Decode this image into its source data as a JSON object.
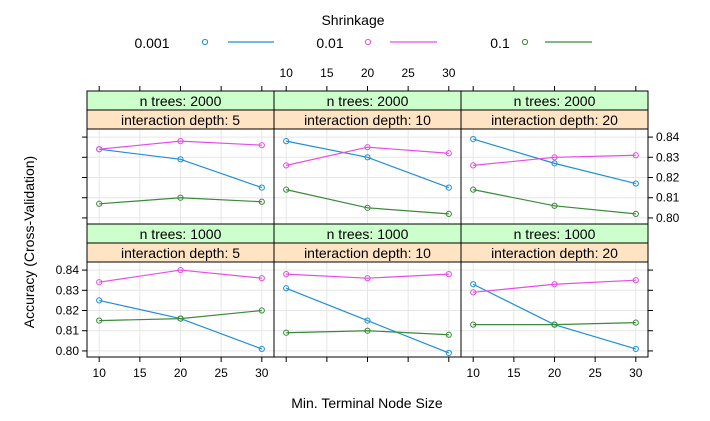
{
  "legend": {
    "title": "Shrinkage",
    "position": "top",
    "items": [
      {
        "label": "0.001",
        "color": "#1f8fd6"
      },
      {
        "label": "0.01",
        "color": "#e64de6"
      },
      {
        "label": "0.1",
        "color": "#3a8a3a"
      }
    ]
  },
  "colors": {
    "strip_green": "#ccffcc",
    "strip_orange": "#ffe4c4",
    "panel_border": "#000000",
    "grid": "#e6e6e6"
  },
  "chart_data": {
    "type": "line",
    "xlabel": "Min. Terminal Node Size",
    "ylabel": "Accuracy (Cross-Validation)",
    "xlim": [
      8.5,
      31.5
    ],
    "ylim": [
      0.797,
      0.844
    ],
    "x_ticks": [
      "10",
      "15",
      "20",
      "25",
      "30"
    ],
    "y_ticks": [
      "0.80",
      "0.81",
      "0.82",
      "0.83",
      "0.84"
    ],
    "grid": true,
    "x": [
      10,
      20,
      30
    ],
    "panels": [
      {
        "strip_top": "n trees: 2000",
        "strip_bottom": "interaction depth:  5",
        "series": [
          {
            "name": "0.001",
            "values": [
              0.834,
              0.829,
              0.815
            ]
          },
          {
            "name": "0.01",
            "values": [
              0.834,
              0.838,
              0.836
            ]
          },
          {
            "name": "0.1",
            "values": [
              0.807,
              0.81,
              0.808
            ]
          }
        ]
      },
      {
        "strip_top": "n trees: 2000",
        "strip_bottom": "interaction depth: 10",
        "series": [
          {
            "name": "0.001",
            "values": [
              0.838,
              0.83,
              0.815
            ]
          },
          {
            "name": "0.01",
            "values": [
              0.826,
              0.835,
              0.832
            ]
          },
          {
            "name": "0.1",
            "values": [
              0.814,
              0.805,
              0.802
            ]
          }
        ]
      },
      {
        "strip_top": "n trees: 2000",
        "strip_bottom": "interaction depth: 20",
        "series": [
          {
            "name": "0.001",
            "values": [
              0.839,
              0.827,
              0.817
            ]
          },
          {
            "name": "0.01",
            "values": [
              0.826,
              0.83,
              0.831
            ]
          },
          {
            "name": "0.1",
            "values": [
              0.814,
              0.806,
              0.802
            ]
          }
        ]
      },
      {
        "strip_top": "n trees: 1000",
        "strip_bottom": "interaction depth:  5",
        "series": [
          {
            "name": "0.001",
            "values": [
              0.825,
              0.816,
              0.801
            ]
          },
          {
            "name": "0.01",
            "values": [
              0.834,
              0.84,
              0.836
            ]
          },
          {
            "name": "0.1",
            "values": [
              0.815,
              0.816,
              0.82
            ]
          }
        ]
      },
      {
        "strip_top": "n trees: 1000",
        "strip_bottom": "interaction depth: 10",
        "series": [
          {
            "name": "0.001",
            "values": [
              0.831,
              0.815,
              0.799
            ]
          },
          {
            "name": "0.01",
            "values": [
              0.838,
              0.836,
              0.838
            ]
          },
          {
            "name": "0.1",
            "values": [
              0.809,
              0.81,
              0.808
            ]
          }
        ]
      },
      {
        "strip_top": "n trees: 1000",
        "strip_bottom": "interaction depth: 20",
        "series": [
          {
            "name": "0.001",
            "values": [
              0.833,
              0.813,
              0.801
            ]
          },
          {
            "name": "0.01",
            "values": [
              0.829,
              0.833,
              0.835
            ]
          },
          {
            "name": "0.1",
            "values": [
              0.813,
              0.813,
              0.814
            ]
          }
        ]
      }
    ]
  }
}
